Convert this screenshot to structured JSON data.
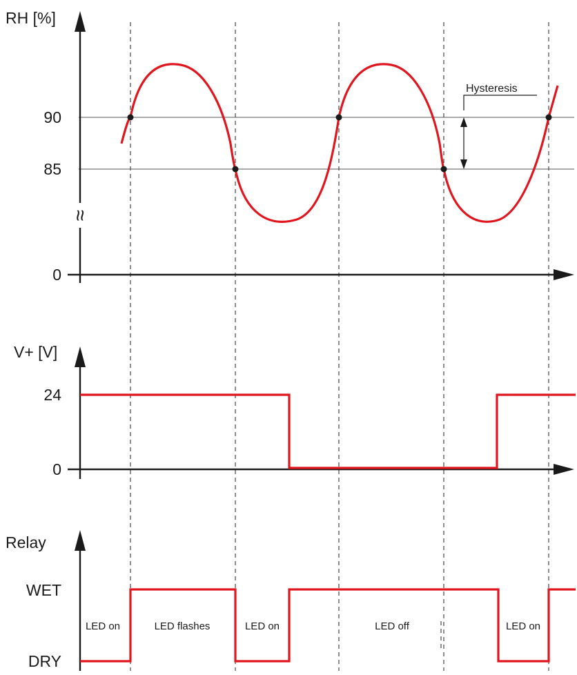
{
  "chart_data": [
    {
      "type": "line",
      "ylabel": "RH [%]",
      "ytick_labels": [
        "90",
        "85",
        "0"
      ],
      "axis_break_symbol": "≈",
      "annotations": [
        {
          "text": "Hysteresis",
          "between": [
            "85",
            "90"
          ]
        }
      ],
      "series": [
        {
          "x": [
            0.4,
            0.55,
            0.75,
            1.0,
            1.3,
            1.6,
            1.85,
            2.0,
            2.2,
            2.5,
            2.8,
            3.05,
            3.3,
            3.5,
            3.75,
            4.0,
            4.3,
            4.6,
            4.85,
            5.0,
            5.2,
            5.5,
            5.8,
            6.05,
            6.3,
            6.5,
            6.75,
            7.0,
            7.1
          ],
          "y": [
            86.5,
            90.0,
            92.2,
            93.0,
            93.0,
            92.2,
            89.5,
            85.0,
            82.8,
            82.2,
            82.8,
            85.8,
            90.0,
            92.2,
            93.0,
            93.0,
            92.2,
            89.5,
            85.0,
            82.8,
            82.2,
            82.2,
            82.6,
            85.8,
            90.0,
            93.0,
            93.0,
            93.0,
            93.0
          ]
        }
      ],
      "crossings": [
        {
          "x": 0.55,
          "y": 90
        },
        {
          "x": 2.05,
          "y": 85
        },
        {
          "x": 3.3,
          "y": 90
        },
        {
          "x": 4.95,
          "y": 85
        },
        {
          "x": 6.3,
          "y": 90
        }
      ]
    },
    {
      "type": "line",
      "ylabel": "V+ [V]",
      "ytick_labels": [
        "24",
        "0"
      ],
      "step_x": [
        0.0,
        2.7,
        2.7,
        5.5,
        5.5,
        6.6
      ],
      "step_y": [
        24,
        24,
        0,
        0,
        24,
        24
      ]
    },
    {
      "type": "line",
      "ylabel": "Relay",
      "ytick_labels": [
        "WET",
        "DRY"
      ],
      "step_x": [
        0.0,
        0.55,
        0.55,
        2.05,
        2.05,
        2.7,
        2.7,
        5.5,
        5.5,
        6.3,
        6.3,
        6.6
      ],
      "step_state": [
        "DRY",
        "DRY",
        "WET",
        "WET",
        "DRY",
        "DRY",
        "WET",
        "WET",
        "DRY",
        "DRY",
        "WET",
        "WET"
      ],
      "state_labels": [
        "LED on",
        "LED flashes",
        "LED on",
        "LED off",
        "LED on"
      ]
    }
  ]
}
